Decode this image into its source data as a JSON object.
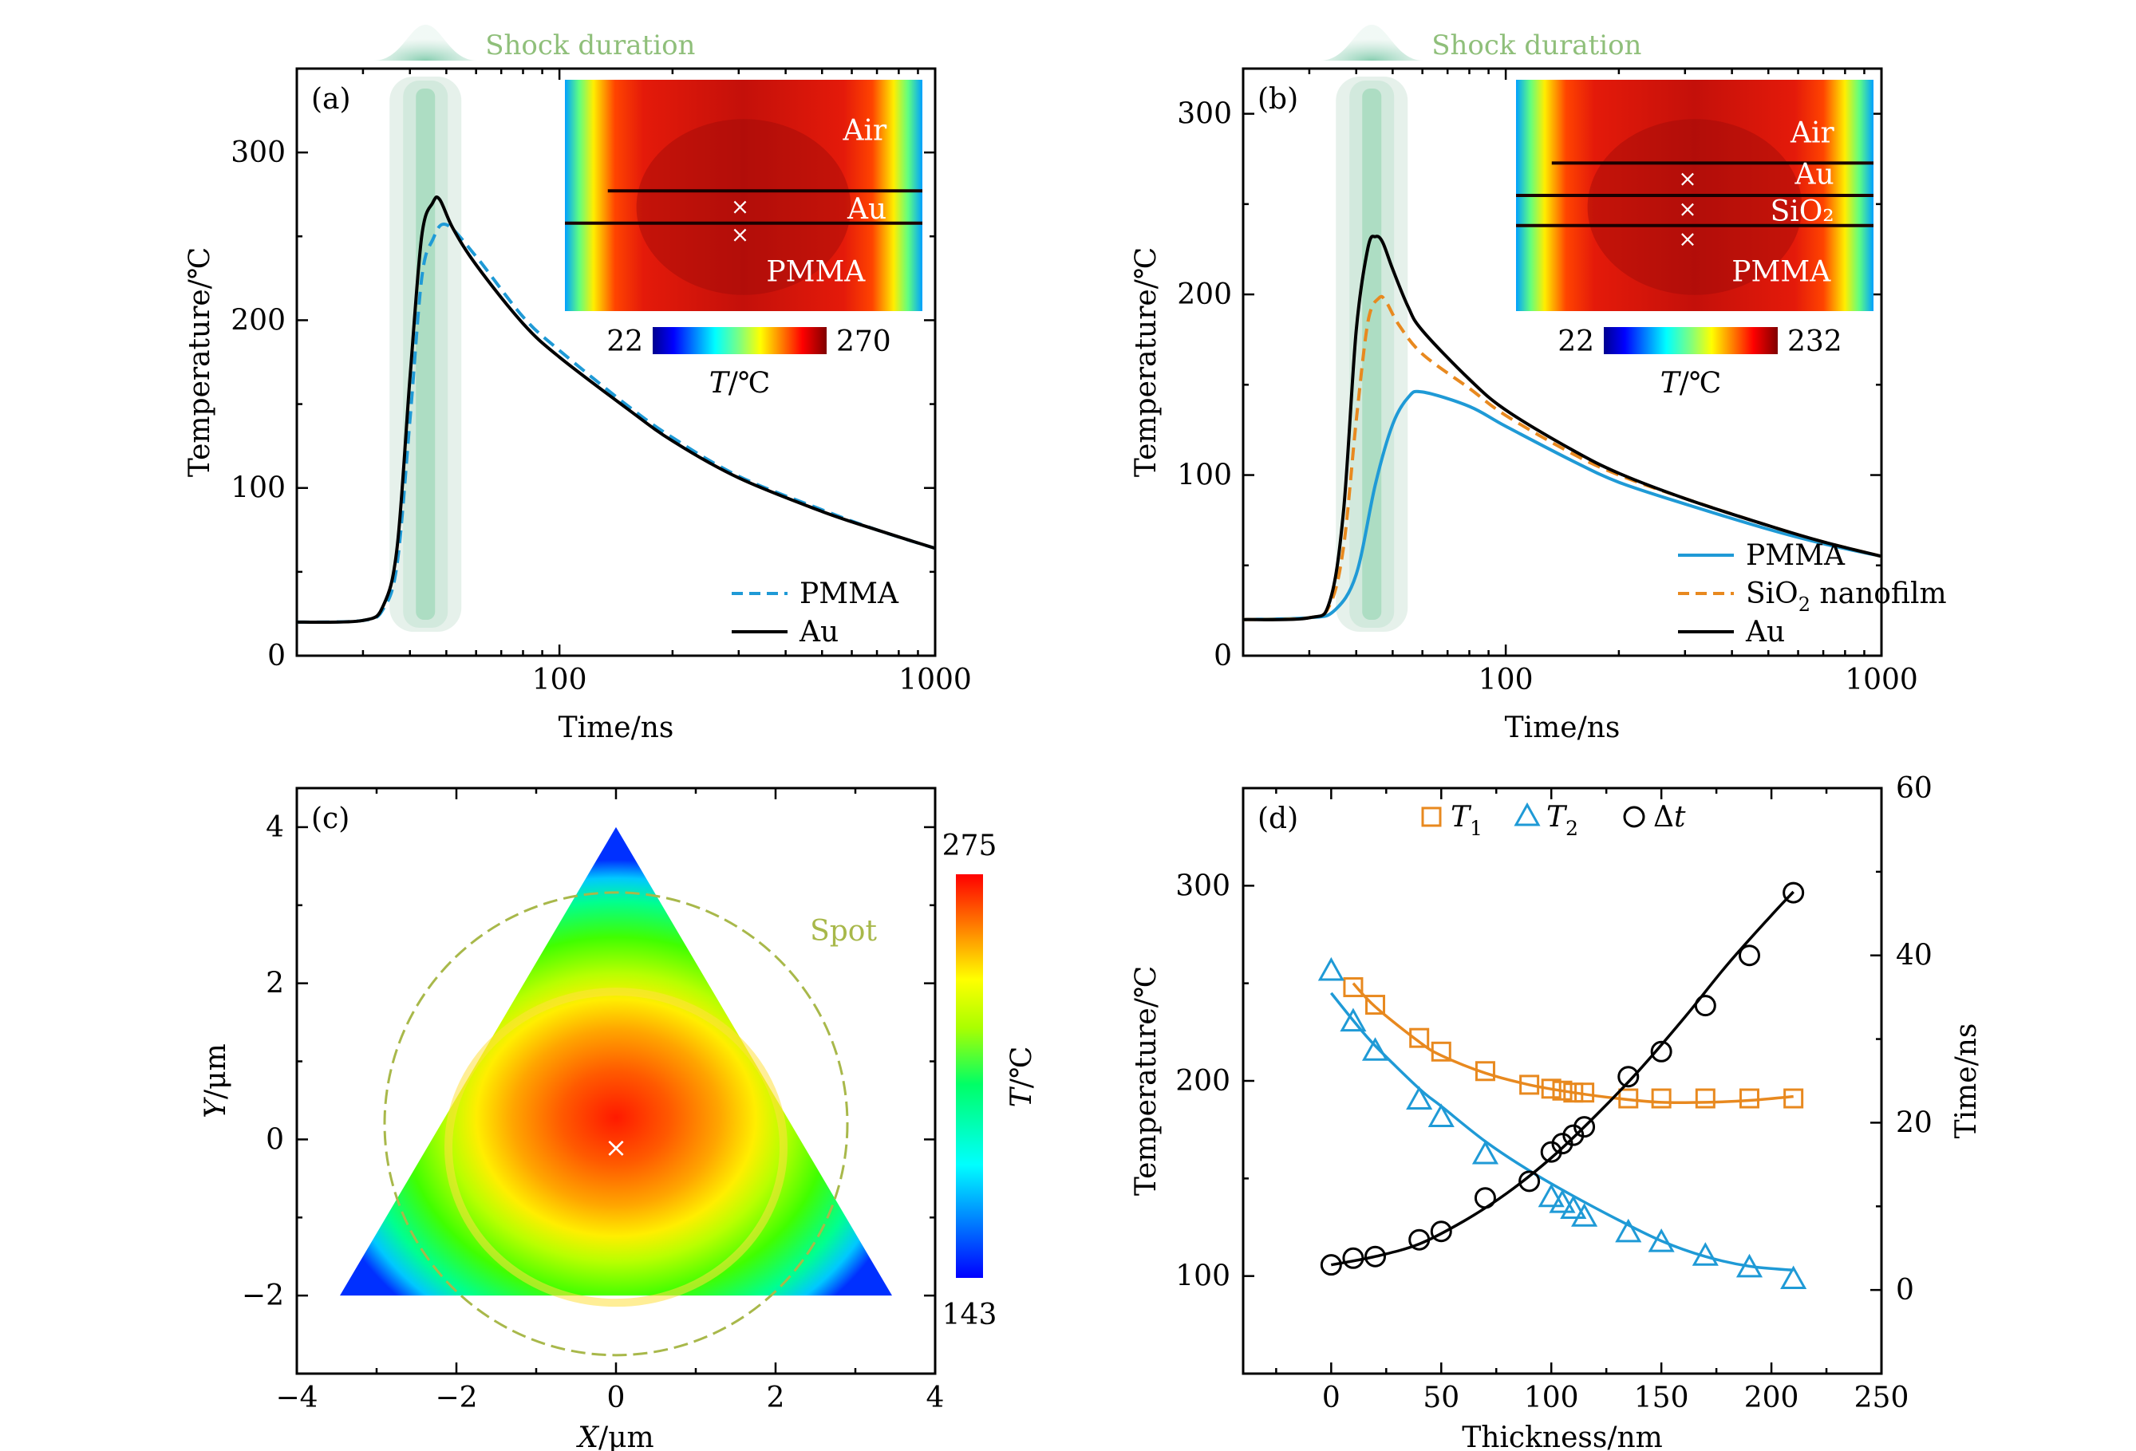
{
  "chart_data": [
    {
      "panel": "(a)",
      "type": "line",
      "xscale": "log",
      "xlim": [
        20,
        1000
      ],
      "ylim": [
        0,
        350
      ],
      "xlabel": "Time/ns",
      "ylabel": "Temperature/℃",
      "xticks": [
        100,
        1000
      ],
      "yticks": [
        0,
        100,
        200,
        300
      ],
      "shock_label": "Shock duration",
      "series": [
        {
          "name": "PMMA",
          "color": "#1f9ad6",
          "dash": "dashed",
          "x": [
            20,
            30,
            34,
            37,
            40,
            43,
            46,
            50,
            60,
            80,
            100,
            150,
            200,
            300,
            500,
            700,
            1000
          ],
          "y": [
            20,
            21,
            28,
            55,
            140,
            225,
            248,
            257,
            238,
            202,
            182,
            150,
            130,
            107,
            87,
            75,
            64
          ]
        },
        {
          "name": "Au",
          "color": "#000000",
          "dash": "solid",
          "x": [
            20,
            30,
            34,
            37,
            40,
            43,
            46,
            48,
            52,
            60,
            80,
            100,
            150,
            200,
            300,
            500,
            700,
            1000
          ],
          "y": [
            20,
            21,
            30,
            65,
            165,
            250,
            270,
            272,
            255,
            233,
            198,
            178,
            148,
            128,
            106,
            86,
            75,
            64
          ]
        }
      ],
      "inset": {
        "labels": [
          "Air",
          "Au",
          "PMMA"
        ],
        "colorbar_min": "22",
        "colorbar_max": "270",
        "colorbar_label": "T/℃"
      }
    },
    {
      "panel": "(b)",
      "type": "line",
      "xscale": "log",
      "xlim": [
        20,
        1000
      ],
      "ylim": [
        0,
        325
      ],
      "xlabel": "Time/ns",
      "ylabel": "Temperature/℃",
      "xticks": [
        100,
        1000
      ],
      "yticks": [
        0,
        100,
        200,
        300
      ],
      "shock_label": "Shock duration",
      "series": [
        {
          "name": "PMMA",
          "color": "#1f9ad6",
          "dash": "solid",
          "x": [
            20,
            30,
            35,
            40,
            45,
            50,
            55,
            60,
            80,
            100,
            150,
            200,
            300,
            500,
            700,
            1000
          ],
          "y": [
            20,
            21,
            25,
            45,
            95,
            128,
            143,
            146,
            138,
            127,
            108,
            96,
            84,
            70,
            62,
            55
          ]
        },
        {
          "name": "SiO2 nanofilm",
          "color": "#e8891f",
          "dash": "dashed",
          "x": [
            20,
            30,
            34,
            37,
            40,
            43,
            46,
            48,
            52,
            60,
            80,
            100,
            150,
            200,
            300,
            500,
            700,
            1000
          ],
          "y": [
            20,
            21,
            28,
            60,
            130,
            185,
            198,
            196,
            183,
            167,
            148,
            133,
            112,
            100,
            87,
            72,
            63,
            55
          ]
        },
        {
          "name": "Au",
          "color": "#000000",
          "dash": "solid",
          "x": [
            20,
            30,
            34,
            37,
            40,
            43,
            45,
            47,
            50,
            55,
            60,
            80,
            100,
            150,
            200,
            300,
            500,
            700,
            1000
          ],
          "y": [
            20,
            21,
            30,
            80,
            180,
            226,
            232,
            229,
            214,
            193,
            180,
            153,
            136,
            114,
            101,
            87,
            72,
            63,
            55
          ]
        }
      ],
      "inset": {
        "labels": [
          "Air",
          "Au",
          "SiO₂",
          "PMMA"
        ],
        "colorbar_min": "22",
        "colorbar_max": "232",
        "colorbar_label": "T/℃"
      }
    },
    {
      "panel": "(c)",
      "type": "heatmap",
      "xlim": [
        -4,
        4
      ],
      "ylim": [
        -3,
        4.5
      ],
      "xlabel": "X/μm",
      "ylabel": "Y/μm",
      "xticks": [
        -4,
        -2,
        0,
        2,
        4
      ],
      "yticks": [
        -2,
        0,
        2,
        4
      ],
      "triangle_vertices": [
        [
          0,
          4
        ],
        [
          -3.46,
          -2
        ],
        [
          3.46,
          -2
        ]
      ],
      "spot_label": "Spot",
      "spot_center": [
        0,
        0.2
      ],
      "spot_radius": 2.9,
      "colorbar_max": "275",
      "colorbar_min": "143",
      "colorbar_label": "T/℃"
    },
    {
      "panel": "(d)",
      "type": "scatter",
      "xlim": [
        -40,
        250
      ],
      "ylim": [
        50,
        350
      ],
      "y2lim": [
        -10,
        60
      ],
      "xlabel": "Thickness/nm",
      "ylabel": "Temperature/℃",
      "y2label": "Time/ns",
      "xticks": [
        0,
        50,
        100,
        150,
        200,
        250
      ],
      "yticks": [
        100,
        200,
        300
      ],
      "y2ticks": [
        0,
        20,
        40,
        60
      ],
      "series": [
        {
          "name": "T",
          "sub": "1",
          "marker": "square",
          "color": "#e8891f",
          "axis": "left",
          "x": [
            10,
            20,
            40,
            50,
            70,
            90,
            100,
            105,
            110,
            115,
            135,
            150,
            170,
            190,
            210
          ],
          "y": [
            248,
            239,
            222,
            215,
            205,
            198,
            196,
            195,
            194,
            194,
            191,
            191,
            191,
            191,
            191
          ],
          "fit_x": [
            10,
            20,
            40,
            50,
            70,
            90,
            110,
            130,
            150,
            170,
            190,
            210
          ],
          "fit_y": [
            250,
            238,
            220,
            213,
            204,
            198,
            194,
            191,
            189,
            189,
            190,
            192
          ]
        },
        {
          "name": "T",
          "sub": "2",
          "marker": "triangle",
          "color": "#1f9ad6",
          "axis": "left",
          "x": [
            0,
            10,
            20,
            40,
            50,
            70,
            100,
            105,
            110,
            115,
            135,
            150,
            170,
            190,
            210
          ],
          "y": [
            256,
            230,
            215,
            190,
            181,
            162,
            140,
            137,
            134,
            130,
            122,
            117,
            110,
            104,
            98
          ],
          "fit_x": [
            0,
            10,
            20,
            40,
            50,
            70,
            90,
            110,
            130,
            150,
            170,
            190,
            210
          ],
          "fit_y": [
            245,
            231,
            218,
            196,
            187,
            169,
            154,
            141,
            129,
            118,
            110,
            105,
            103
          ]
        },
        {
          "name": "Δt",
          "sub": "",
          "marker": "circle",
          "color": "#000000",
          "axis": "right",
          "x": [
            0,
            10,
            20,
            40,
            50,
            70,
            90,
            100,
            105,
            110,
            115,
            135,
            150,
            170,
            190,
            210
          ],
          "y": [
            3,
            3.8,
            4,
            6,
            7,
            11,
            13,
            16.5,
            17.5,
            18.5,
            19.5,
            25.5,
            28.5,
            34,
            40,
            47.5
          ],
          "fit_x": [
            0,
            20,
            40,
            60,
            80,
            100,
            120,
            140,
            160,
            180,
            200,
            210
          ],
          "fit_y": [
            3,
            4,
            5.5,
            8.2,
            11.6,
            15.8,
            20.8,
            26.3,
            32.4,
            38.9,
            44.8,
            47.6
          ]
        }
      ]
    }
  ]
}
